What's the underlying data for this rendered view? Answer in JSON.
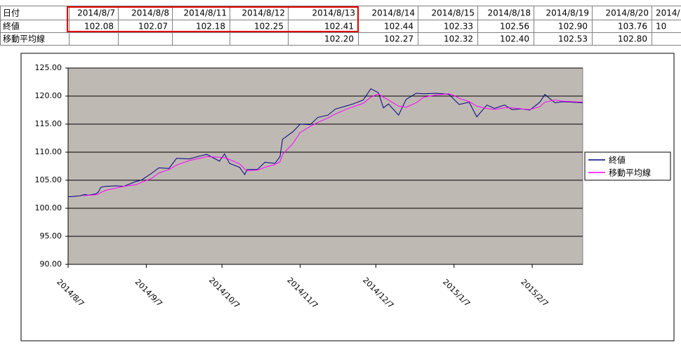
{
  "table": {
    "header": [
      "日付",
      "2014/8/7",
      "2014/8/8",
      "2014/8/11",
      "2014/8/12",
      "2014/8/13",
      "2014/8/14",
      "2014/8/15",
      "2014/8/18",
      "2014/8/19",
      "2014/8/20",
      "2014/"
    ],
    "rows": [
      [
        "終値",
        "102.08",
        "102.07",
        "102.18",
        "102.25",
        "102.41",
        "102.44",
        "102.33",
        "102.56",
        "102.90",
        "103.76",
        "10"
      ],
      [
        "移動平均線",
        null,
        null,
        null,
        null,
        "102.20",
        "102.27",
        "102.32",
        "102.40",
        "102.53",
        "102.80",
        null
      ]
    ]
  },
  "chart_data": {
    "type": "line",
    "x": [
      "2014/8/7",
      "2014/8/8",
      "2014/8/11",
      "2014/8/12",
      "2014/8/13",
      "2014/8/14",
      "2014/8/15",
      "2014/8/18",
      "2014/8/19",
      "2014/8/20",
      "2014/8/22",
      "2014/8/26",
      "2014/8/29",
      "2014/9/3",
      "2014/9/5",
      "2014/9/9",
      "2014/9/12",
      "2014/9/16",
      "2014/9/19",
      "2014/9/24",
      "2014/9/29",
      "2014/10/1",
      "2014/10/6",
      "2014/10/8",
      "2014/10/10",
      "2014/10/14",
      "2014/10/16",
      "2014/10/17",
      "2014/10/21",
      "2014/10/24",
      "2014/10/28",
      "2014/10/30",
      "2014/10/31",
      "2014/11/4",
      "2014/11/7",
      "2014/11/11",
      "2014/11/14",
      "2014/11/18",
      "2014/11/21",
      "2014/11/25",
      "2014/11/28",
      "2014/12/2",
      "2014/12/5",
      "2014/12/8",
      "2014/12/10",
      "2014/12/12",
      "2014/12/16",
      "2014/12/19",
      "2014/12/23",
      "2014/12/26",
      "2014/12/31",
      "2015/1/5",
      "2015/1/7",
      "2015/1/9",
      "2015/1/13",
      "2015/1/16",
      "2015/1/20",
      "2015/1/23",
      "2015/1/27",
      "2015/1/30",
      "2015/2/3",
      "2015/2/6",
      "2015/2/10",
      "2015/2/12",
      "2015/2/16",
      "2015/2/19",
      "2015/2/23",
      "2015/2/27"
    ],
    "series": [
      {
        "name": "終値",
        "color": "#000080",
        "values": [
          102.08,
          102.07,
          102.18,
          102.25,
          102.41,
          102.44,
          102.33,
          102.56,
          102.9,
          103.76,
          103.9,
          104.0,
          103.9,
          104.8,
          105.0,
          106.2,
          107.2,
          107.1,
          108.9,
          108.8,
          109.4,
          109.6,
          108.4,
          109.7,
          108.0,
          107.3,
          106.0,
          106.9,
          106.9,
          108.2,
          108.0,
          109.2,
          112.3,
          113.6,
          115.0,
          114.9,
          116.2,
          116.6,
          117.7,
          118.2,
          118.6,
          119.3,
          121.3,
          120.6,
          117.9,
          118.6,
          116.6,
          119.4,
          120.5,
          120.4,
          120.5,
          120.3,
          119.4,
          118.5,
          118.9,
          116.3,
          118.4,
          117.8,
          118.4,
          117.6,
          117.7,
          117.5,
          118.9,
          120.3,
          118.8,
          119.0,
          118.9,
          118.8
        ]
      },
      {
        "name": "移動平均線",
        "color": "#ff00ff",
        "values": [
          null,
          null,
          null,
          null,
          102.2,
          102.27,
          102.32,
          102.4,
          102.53,
          102.8,
          103.2,
          103.6,
          103.9,
          104.2,
          104.6,
          105.3,
          106.3,
          106.9,
          107.7,
          108.5,
          109.0,
          109.2,
          109.1,
          109.0,
          108.7,
          107.9,
          107.0,
          106.7,
          106.8,
          107.3,
          107.8,
          108.3,
          109.6,
          111.5,
          113.5,
          114.6,
          115.3,
          116.1,
          116.8,
          117.6,
          118.1,
          118.7,
          119.8,
          120.4,
          119.8,
          119.3,
          118.2,
          118.0,
          118.8,
          119.8,
          120.2,
          120.4,
          120.1,
          119.6,
          119.0,
          118.2,
          117.8,
          117.6,
          117.9,
          117.9,
          117.7,
          117.6,
          118.1,
          118.9,
          119.3,
          119.1,
          119.0,
          118.9
        ]
      }
    ],
    "xlim": [
      "2014/8/7",
      "2015/2/27"
    ],
    "xticks": [
      "2014/8/7",
      "2014/9/7",
      "2014/10/7",
      "2014/11/7",
      "2014/12/7",
      "2015/1/7",
      "2015/2/7"
    ],
    "ylim": [
      90,
      125
    ],
    "yticks": [
      {
        "value": 90,
        "label": "90.00"
      },
      {
        "value": 95,
        "label": "95.00"
      },
      {
        "value": 100,
        "label": "100.00"
      },
      {
        "value": 105,
        "label": "105.00"
      },
      {
        "value": 110,
        "label": "110.00"
      },
      {
        "value": 115,
        "label": "115.00"
      },
      {
        "value": 120,
        "label": "120.00"
      },
      {
        "value": 125,
        "label": "125.00"
      }
    ],
    "grid": true,
    "legend": "right",
    "plot_color": "#bfb9b4"
  }
}
